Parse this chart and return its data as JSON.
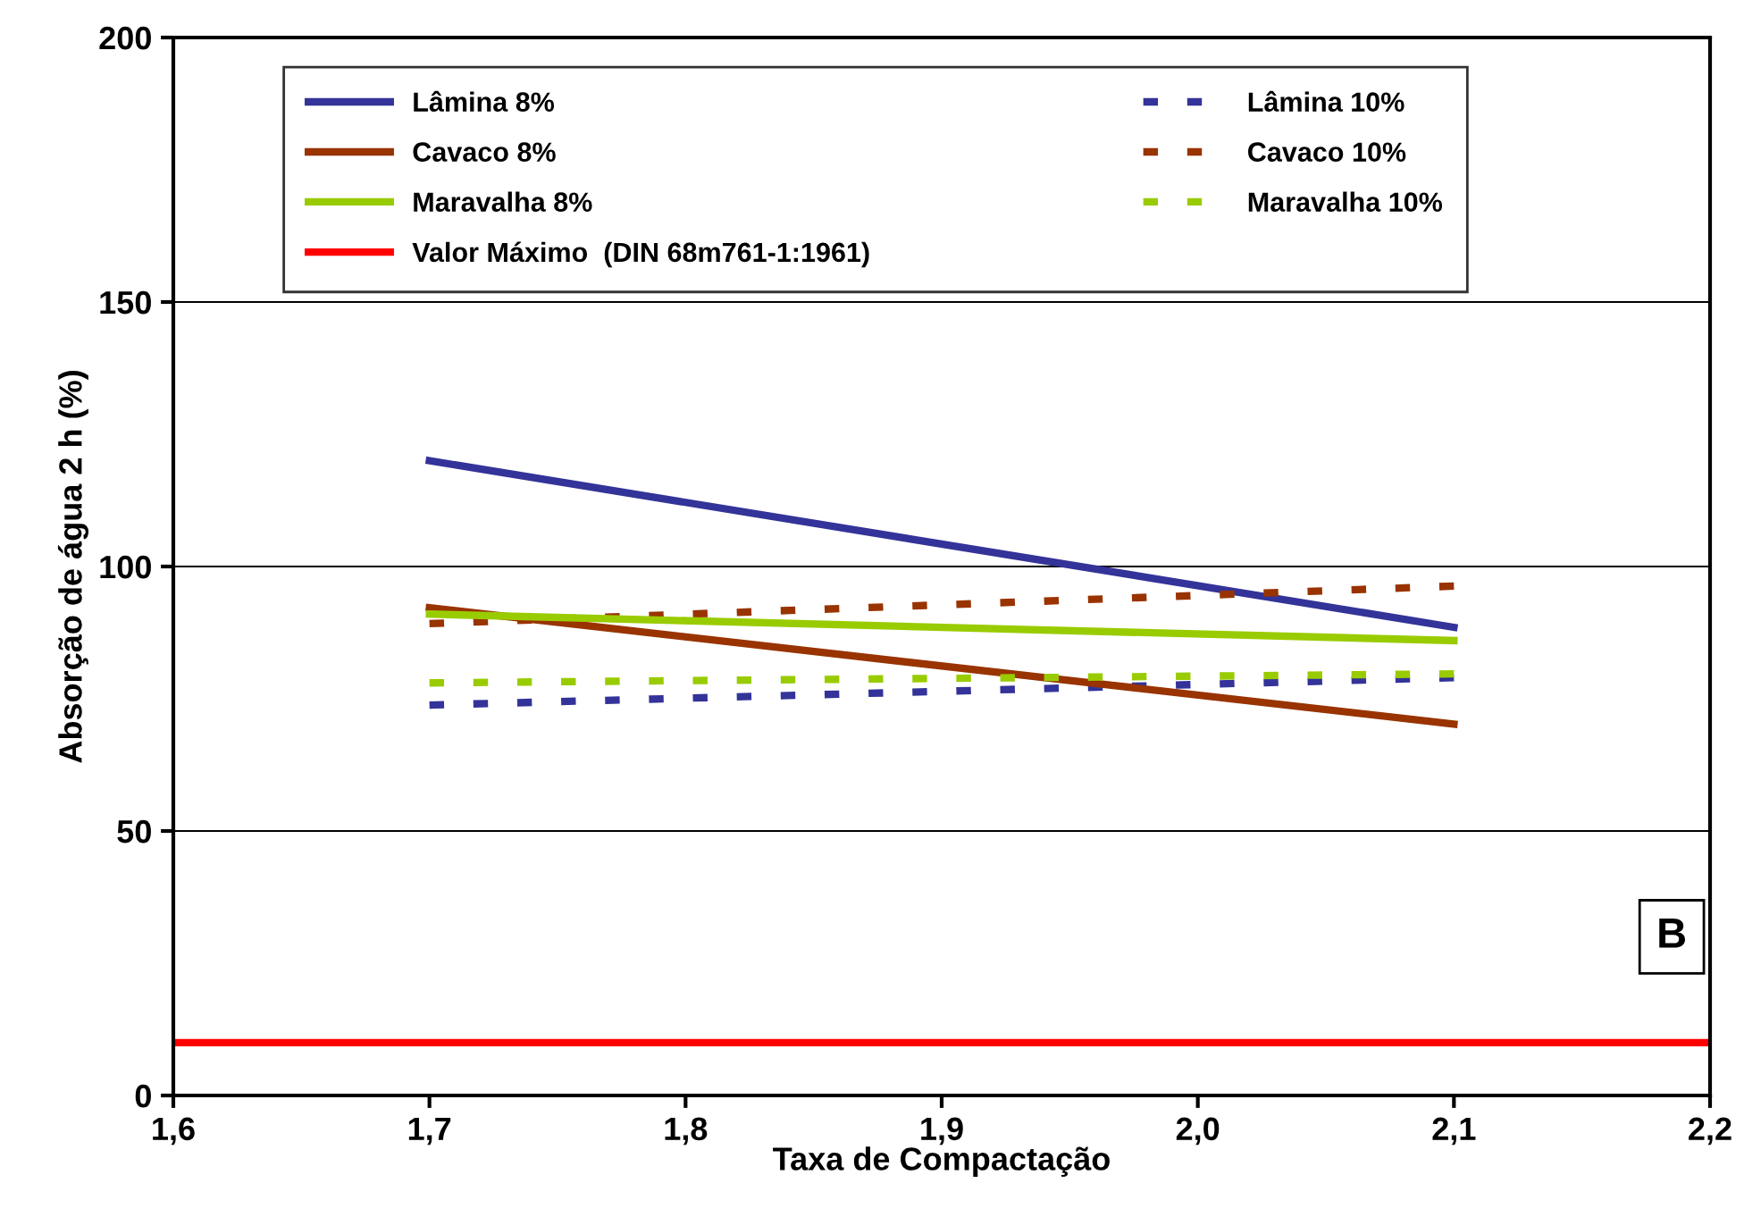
{
  "chart_data": {
    "type": "line",
    "xlabel": "Taxa de Compactação",
    "ylabel": "Absorção de água 2 h (%)",
    "x": [
      1.7,
      2.1
    ],
    "series": [
      {
        "name": "Lâmina 8%",
        "color": "#333399",
        "values": [
          120,
          88.5
        ],
        "line_style": "solid"
      },
      {
        "name": "Lâmina 10%",
        "color": "#333399",
        "values": [
          73.8,
          79
        ],
        "line_style": "dashed"
      },
      {
        "name": "Cavaco 8%",
        "color": "#993300",
        "values": [
          92.2,
          70.2
        ],
        "line_style": "solid"
      },
      {
        "name": "Cavaco 10%",
        "color": "#993300",
        "values": [
          89.2,
          96.3
        ],
        "line_style": "dashed"
      },
      {
        "name": "Maravalha 8%",
        "color": "#99cc00",
        "values": [
          91,
          86
        ],
        "line_style": "solid"
      },
      {
        "name": "Maravalha 10%",
        "color": "#99cc00",
        "values": [
          78,
          79.7
        ],
        "line_style": "dashed"
      },
      {
        "name": "Valor Máximo  (DIN 68m761-1:1961)",
        "color": "#ff0000",
        "x": [
          1.6,
          2.2
        ],
        "values": [
          10,
          10
        ],
        "line_style": "solid"
      }
    ],
    "annotations": [
      "B"
    ],
    "xlim": [
      1.6,
      2.2
    ],
    "xticks": [
      {
        "value": 1.6,
        "label": "1,6"
      },
      {
        "value": 1.7,
        "label": "1,7"
      },
      {
        "value": 1.8,
        "label": "1,8"
      },
      {
        "value": 1.9,
        "label": "1,9"
      },
      {
        "value": 2.0,
        "label": "2,0"
      },
      {
        "value": 2.1,
        "label": "2,1"
      },
      {
        "value": 2.2,
        "label": "2,2"
      }
    ],
    "ylim": [
      0,
      200
    ],
    "yticks": [
      0,
      50,
      100,
      150,
      200
    ],
    "grid": "y",
    "legend": "top",
    "marker": "none"
  }
}
